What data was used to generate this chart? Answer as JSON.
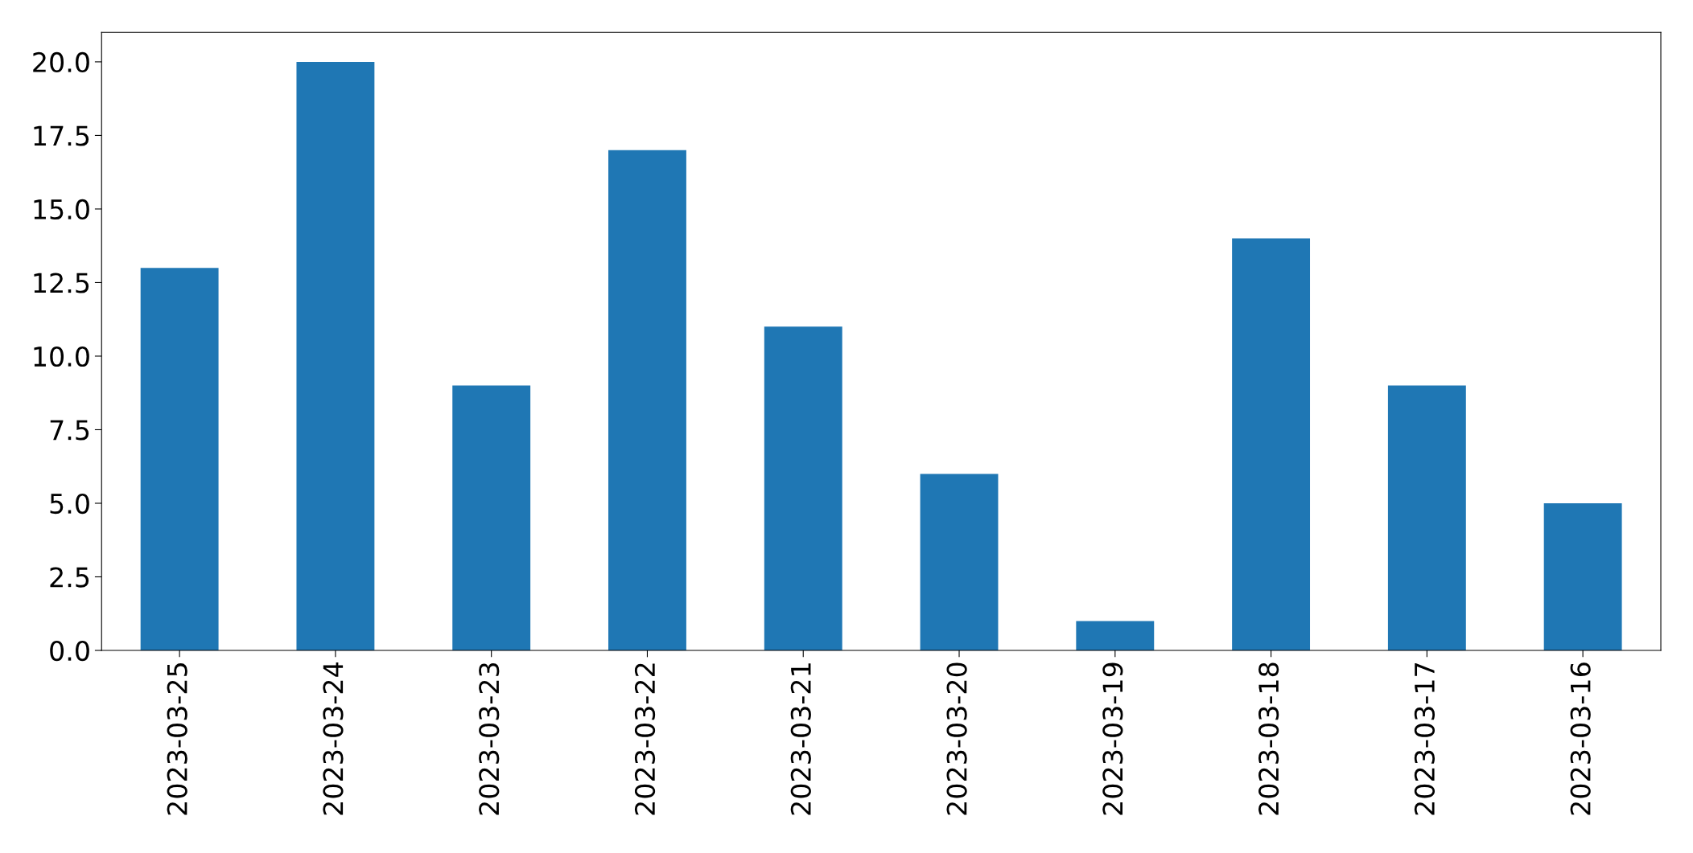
{
  "chart_data": {
    "type": "bar",
    "categories": [
      "2023-03-25",
      "2023-03-24",
      "2023-03-23",
      "2023-03-22",
      "2023-03-21",
      "2023-03-20",
      "2023-03-19",
      "2023-03-18",
      "2023-03-17",
      "2023-03-16"
    ],
    "values": [
      13,
      20,
      9,
      17,
      11,
      6,
      1,
      14,
      9,
      5
    ],
    "color": "#1f77b4",
    "ylim": [
      0,
      21
    ],
    "yticks": [
      {
        "value": 0,
        "label": "0.0"
      },
      {
        "value": 2.5,
        "label": "2.5"
      },
      {
        "value": 5,
        "label": "5.0"
      },
      {
        "value": 7.5,
        "label": "7.5"
      },
      {
        "value": 10,
        "label": "10.0"
      },
      {
        "value": 12.5,
        "label": "12.5"
      },
      {
        "value": 15,
        "label": "15.0"
      },
      {
        "value": 17.5,
        "label": "17.5"
      },
      {
        "value": 20,
        "label": "20.0"
      }
    ],
    "grid": false,
    "legend": false
  }
}
